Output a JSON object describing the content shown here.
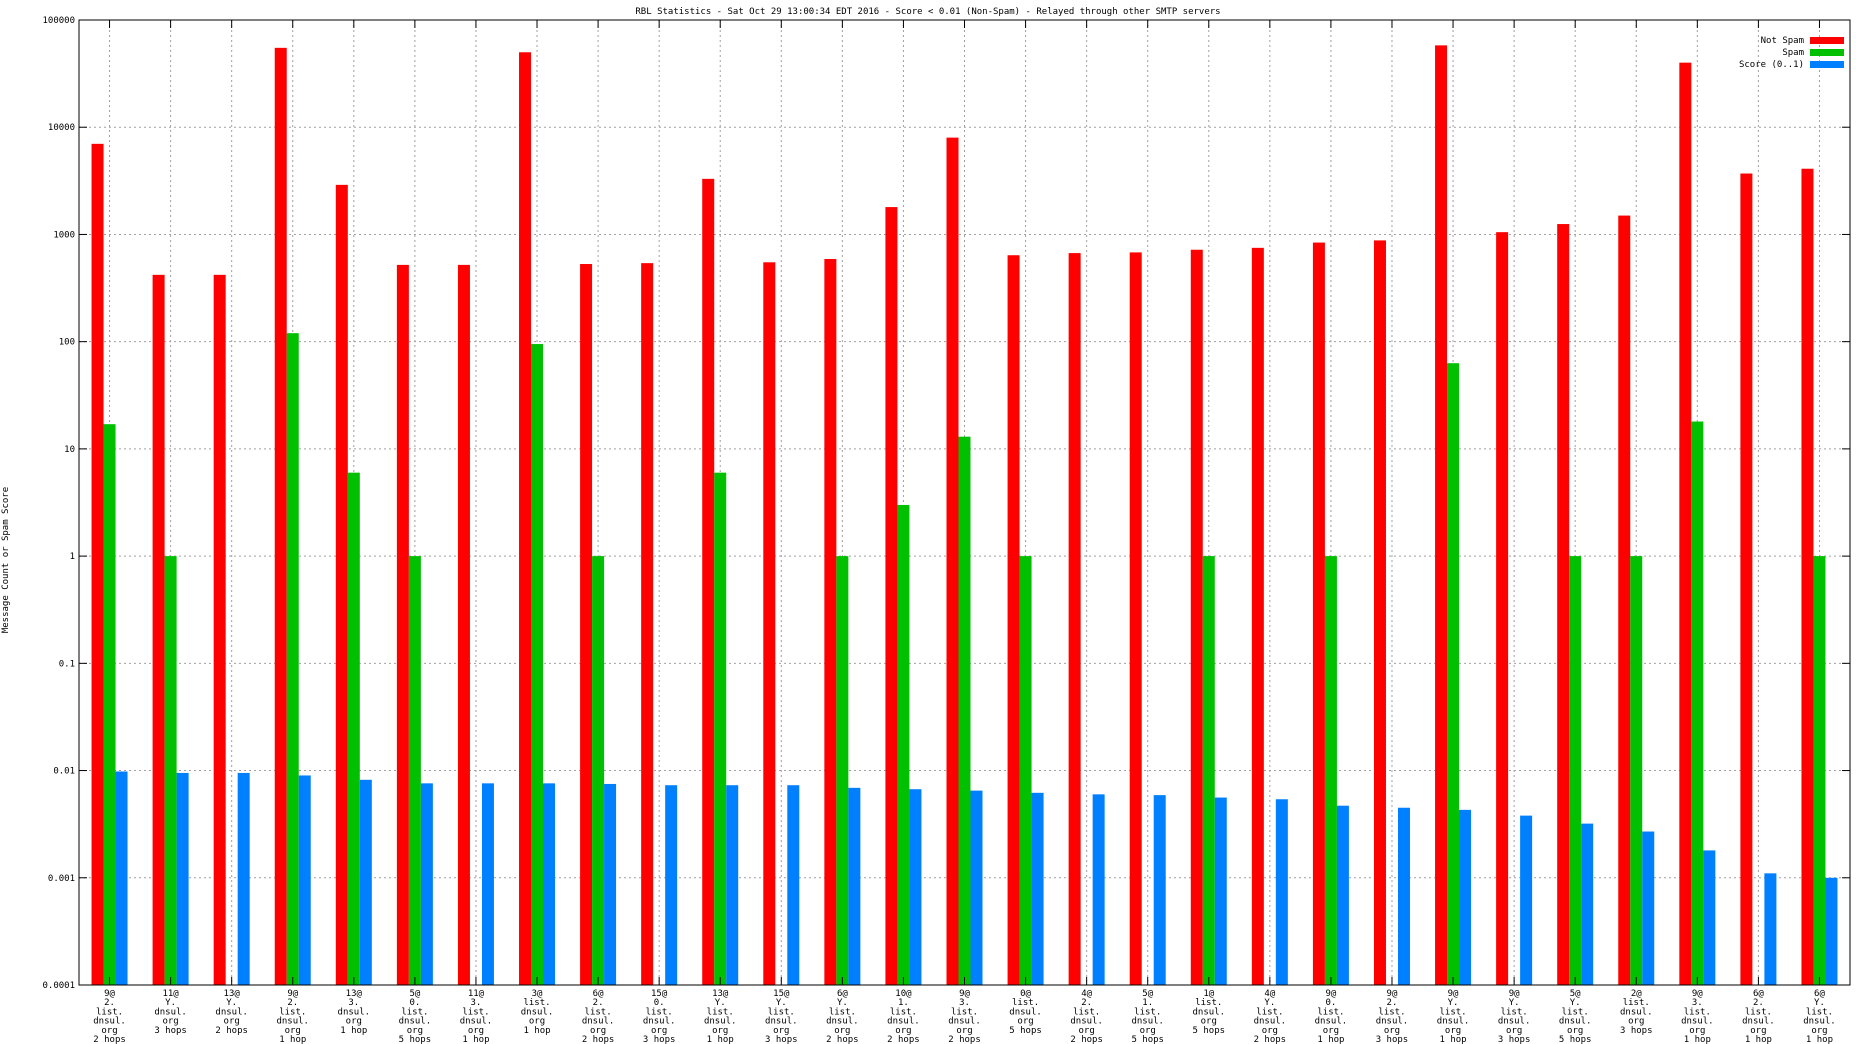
{
  "chart_data": {
    "type": "bar",
    "title": "RBL Statistics - Sat Oct 29 13:00:34 EDT 2016 - Score < 0.01 (Non-Spam) - Relayed through other SMTP servers",
    "ylabel": "Message Count or Spam Score",
    "xlabel": "",
    "yscale": "log",
    "ylim": [
      0.0001,
      100000
    ],
    "yticks": [
      "0.0001",
      "0.001",
      "0.01",
      "0.1",
      "1",
      "10",
      "100",
      "1000",
      "10000",
      "100000"
    ],
    "grid": true,
    "legend_position": "top-right",
    "categories": [
      [
        "9@",
        "2.",
        "list.",
        "dnsul.",
        "org",
        "2 hops"
      ],
      [
        "11@",
        "Y.",
        "dnsul.",
        "org",
        "3 hops"
      ],
      [
        "13@",
        "Y.",
        "dnsul.",
        "org",
        "2 hops"
      ],
      [
        "9@",
        "2.",
        "list.",
        "dnsul.",
        "org",
        "1 hop"
      ],
      [
        "13@",
        "3.",
        "dnsul.",
        "org",
        "1 hop"
      ],
      [
        "5@",
        "0.",
        "list.",
        "dnsul.",
        "org",
        "5 hops"
      ],
      [
        "11@",
        "3.",
        "list.",
        "dnsul.",
        "org",
        "1 hop"
      ],
      [
        "3@",
        "list.",
        "dnsul.",
        "org",
        "1 hop"
      ],
      [
        "6@",
        "2.",
        "list.",
        "dnsul.",
        "org",
        "2 hops"
      ],
      [
        "15@",
        "0.",
        "list.",
        "dnsul.",
        "org",
        "3 hops"
      ],
      [
        "13@",
        "Y.",
        "list.",
        "dnsul.",
        "org",
        "1 hop"
      ],
      [
        "15@",
        "Y.",
        "list.",
        "dnsul.",
        "org",
        "3 hops"
      ],
      [
        "6@",
        "Y.",
        "list.",
        "dnsul.",
        "org",
        "2 hops"
      ],
      [
        "10@",
        "1.",
        "list.",
        "dnsul.",
        "org",
        "2 hops"
      ],
      [
        "9@",
        "3.",
        "list.",
        "dnsul.",
        "org",
        "2 hops"
      ],
      [
        "0@",
        "list.",
        "dnsul.",
        "org",
        "5 hops"
      ],
      [
        "4@",
        "2.",
        "list.",
        "dnsul.",
        "org",
        "2 hops"
      ],
      [
        "5@",
        "1.",
        "list.",
        "dnsul.",
        "org",
        "5 hops"
      ],
      [
        "1@",
        "list.",
        "dnsul.",
        "org",
        "5 hops"
      ],
      [
        "4@",
        "Y.",
        "list.",
        "dnsul.",
        "org",
        "2 hops"
      ],
      [
        "9@",
        "0.",
        "list.",
        "dnsul.",
        "org",
        "1 hop"
      ],
      [
        "9@",
        "2.",
        "list.",
        "dnsul.",
        "org",
        "3 hops"
      ],
      [
        "9@",
        "Y.",
        "list.",
        "dnsul.",
        "org",
        "1 hop"
      ],
      [
        "9@",
        "Y.",
        "list.",
        "dnsul.",
        "org",
        "3 hops"
      ],
      [
        "5@",
        "Y.",
        "list.",
        "dnsul.",
        "org",
        "5 hops"
      ],
      [
        "2@",
        "list.",
        "dnsul.",
        "org",
        "3 hops"
      ],
      [
        "9@",
        "3.",
        "list.",
        "dnsul.",
        "org",
        "1 hop"
      ],
      [
        "6@",
        "2.",
        "list.",
        "dnsul.",
        "org",
        "1 hop"
      ],
      [
        "6@",
        "Y.",
        "list.",
        "dnsul.",
        "org",
        "1 hop"
      ]
    ],
    "series": [
      {
        "name": "Not Spam",
        "color": "#ff0000",
        "values": [
          7000,
          420,
          420,
          55000,
          2900,
          520,
          520,
          50000,
          530,
          540,
          3300,
          550,
          590,
          1800,
          8000,
          640,
          670,
          680,
          720,
          750,
          840,
          880,
          58000,
          1050,
          1250,
          1500,
          40000,
          3700,
          4100
        ]
      },
      {
        "name": "Spam",
        "color": "#00c000",
        "values": [
          17,
          1,
          null,
          120,
          6,
          1,
          null,
          95,
          1,
          null,
          6,
          null,
          1,
          3,
          13,
          1,
          null,
          null,
          1,
          null,
          1,
          null,
          63,
          null,
          1,
          1,
          18,
          null,
          1
        ]
      },
      {
        "name": "Score (0..1)",
        "color": "#0080ff",
        "values": [
          0.0098,
          0.0095,
          0.0095,
          0.009,
          0.0082,
          0.0076,
          0.0076,
          0.0076,
          0.0075,
          0.0073,
          0.0073,
          0.0073,
          0.0069,
          0.0067,
          0.0065,
          0.0062,
          0.006,
          0.0059,
          0.0056,
          0.0054,
          0.0047,
          0.0045,
          0.0043,
          0.0038,
          0.0032,
          0.0027,
          0.0018,
          0.0011,
          0.001
        ]
      }
    ]
  }
}
